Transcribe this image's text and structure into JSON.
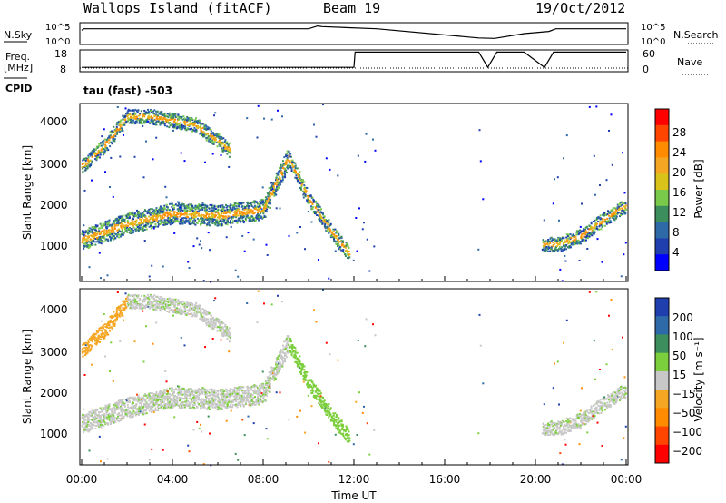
{
  "header": {
    "title": "Wallops Island (fitACF)",
    "beam": "Beam 19",
    "date": "19/Oct/2012"
  },
  "strip1": {
    "left_label": "N.Sky",
    "right_label": "N.Search",
    "ticks_left": [
      "10^5",
      "10^0"
    ],
    "ticks_right": [
      "10^5",
      "10^0"
    ]
  },
  "strip2": {
    "left_label_1": "Freq.",
    "left_label_2": "[MHz]",
    "right_label": "Nave",
    "ticks_left": [
      "18",
      "8"
    ],
    "ticks_right": [
      "60",
      "0"
    ]
  },
  "cpid_label": "CPID",
  "mode_label": "tau (fast) -503",
  "x_axis": {
    "title": "Time UT",
    "ticks": [
      "00:00",
      "04:00",
      "08:00",
      "12:00",
      "16:00",
      "20:00",
      "00:00"
    ]
  },
  "panels": {
    "power": {
      "ylabel": "Slant Range [km]",
      "yticks": [
        "4000",
        "3000",
        "2000",
        "1000"
      ],
      "cbar_title": "Power [dB]",
      "cbar_ticks": [
        "28",
        "24",
        "20",
        "16",
        "12",
        "8",
        "4"
      ],
      "cbar_colors": [
        "#ff0000",
        "#ff4500",
        "#ff8c00",
        "#f5a623",
        "#d9c21a",
        "#79c94a",
        "#3c8f5c",
        "#2f6aa8",
        "#1f3faf",
        "#0000ff"
      ]
    },
    "velocity": {
      "ylabel": "Slant Range [km]",
      "yticks": [
        "4000",
        "3000",
        "2000",
        "1000"
      ],
      "cbar_title": "Velocity [m s⁻¹]",
      "cbar_ticks": [
        "200",
        "100",
        "50",
        "15",
        "−15",
        "−50",
        "−100",
        "−200"
      ],
      "cbar_colors": [
        "#1f3faf",
        "#2f6aa8",
        "#3c8f5c",
        "#7ccf3c",
        "#c8c8c8",
        "#f5a623",
        "#ff8c00",
        "#ff4500",
        "#ff0000"
      ]
    }
  },
  "chart_data": [
    {
      "type": "line",
      "name": "N.Sky",
      "x_hours": [
        0.0,
        0.1,
        10.0,
        10.4,
        10.6,
        13.0,
        17.5,
        18.2,
        19.5,
        20.6,
        20.9,
        24.0
      ],
      "y": [
        0.65,
        0.72,
        0.72,
        0.85,
        0.82,
        0.72,
        0.3,
        0.28,
        0.5,
        0.6,
        0.72,
        0.72
      ]
    },
    {
      "type": "line",
      "name": "Freq",
      "x_hours": [
        0.0,
        12.0,
        12.05,
        13.0,
        13.5,
        17.5,
        17.9,
        18.3,
        19.5,
        20.4,
        20.8,
        24.0
      ],
      "y": [
        0.2,
        0.2,
        0.9,
        0.9,
        0.9,
        0.9,
        0.2,
        0.9,
        0.9,
        0.2,
        0.9,
        0.9
      ]
    },
    {
      "type": "heatmap",
      "name": "Power",
      "x_range": [
        0,
        24
      ],
      "y_range": [
        180,
        4500
      ],
      "features": [
        {
          "desc": "low band",
          "x_hours": [
            0.0,
            2.0,
            4.0,
            6.0,
            8.0,
            9.1
          ],
          "y_km": [
            1200,
            1600,
            1850,
            1800,
            1950,
            3200
          ]
        },
        {
          "desc": "decay",
          "x_hours": [
            9.1,
            10.0,
            11.0,
            11.8
          ],
          "y_km": [
            3200,
            2200,
            1400,
            850
          ]
        },
        {
          "desc": "upper band",
          "x_hours": [
            0.0,
            1.0,
            2.0,
            3.0,
            5.0,
            6.5
          ],
          "y_km": [
            3000,
            3500,
            4200,
            4200,
            4000,
            3400
          ]
        },
        {
          "desc": "morning",
          "x_hours": [
            20.3,
            21.0,
            22.0,
            23.0,
            24.0
          ],
          "y_km": [
            1100,
            1100,
            1300,
            1700,
            2050
          ]
        }
      ]
    },
    {
      "type": "heatmap",
      "name": "Velocity",
      "x_range": [
        0,
        24
      ],
      "y_range": [
        180,
        4500
      ]
    }
  ]
}
